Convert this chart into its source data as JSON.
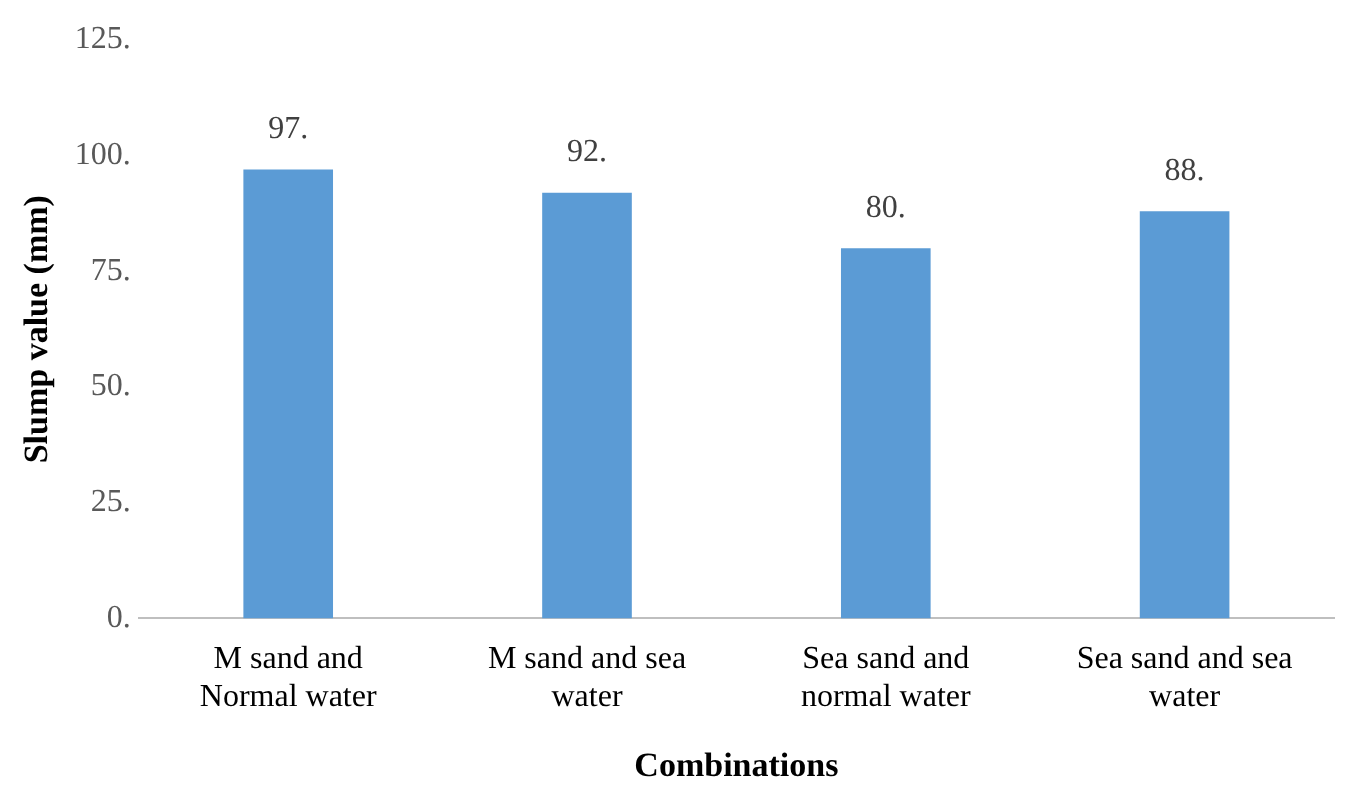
{
  "chart_data": {
    "type": "bar",
    "xlabel": "Combinations",
    "ylabel": "Slump value (mm)",
    "categories": [
      "M sand and Normal water",
      "M sand and sea water",
      "Sea sand and normal water",
      "Sea sand and sea water"
    ],
    "values": [
      97,
      92,
      80,
      88
    ],
    "color": "#5b9bd5",
    "value_labels": [
      "97.",
      "92.",
      "80.",
      "88."
    ],
    "ylim": [
      0,
      125
    ],
    "yticks": [
      {
        "value": 0,
        "label": "0."
      },
      {
        "value": 25,
        "label": "25."
      },
      {
        "value": 50,
        "label": "50."
      },
      {
        "value": 75,
        "label": "75."
      },
      {
        "value": 100,
        "label": "100."
      },
      {
        "value": 125,
        "label": "125."
      }
    ],
    "grid": false,
    "legend": false
  }
}
